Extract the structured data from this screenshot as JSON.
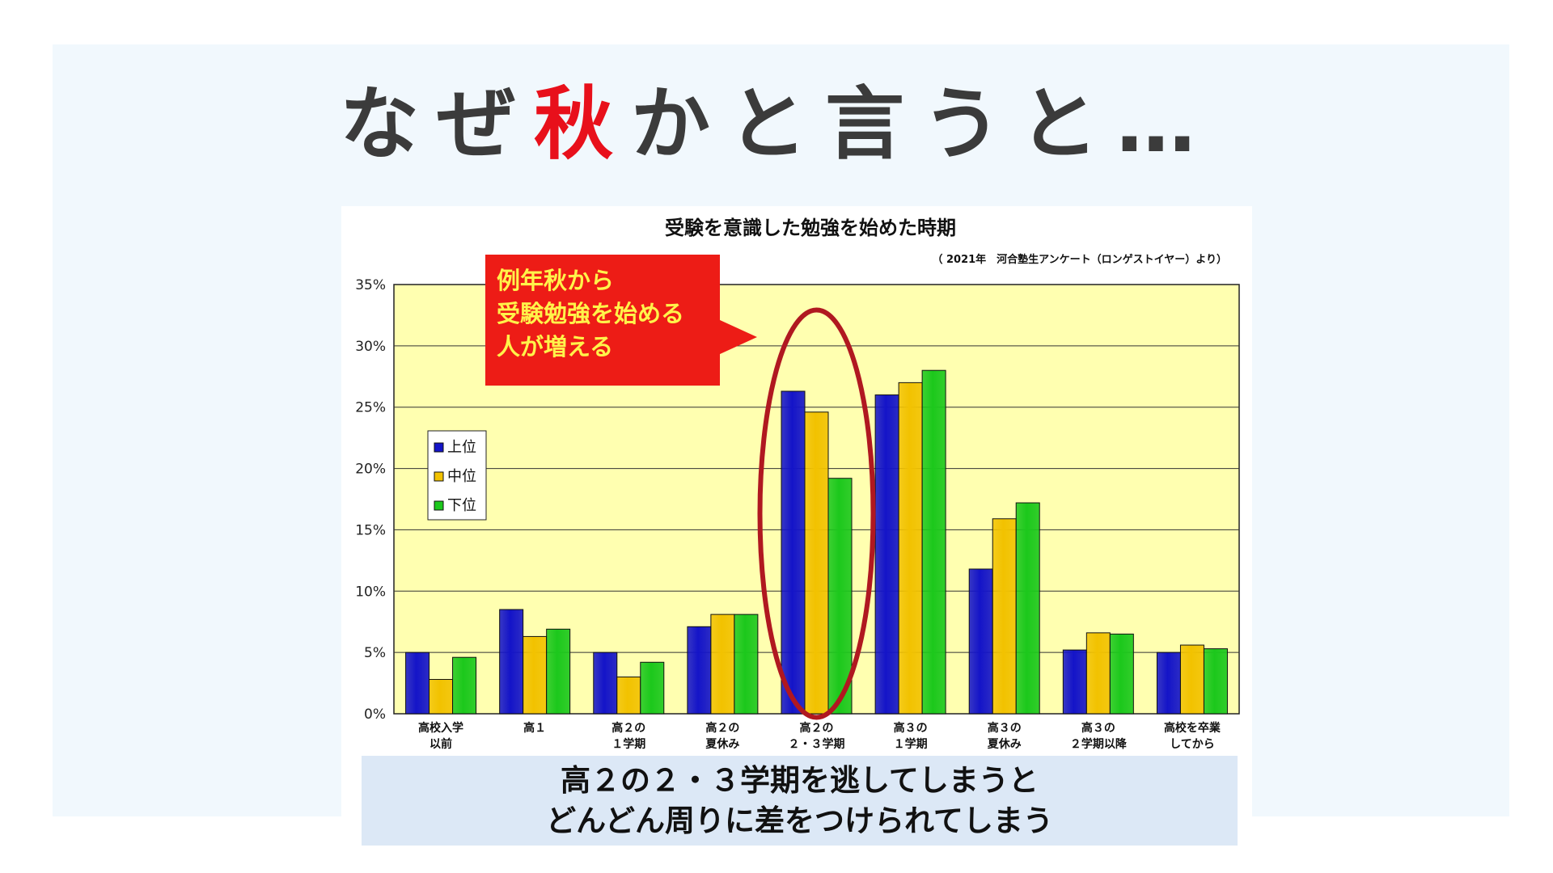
{
  "headline": {
    "before": "なぜ",
    "accent": "秋",
    "after": "かと言うと…"
  },
  "callout": {
    "lines": [
      "例年秋から",
      "受験勉強を始める",
      "人が増える"
    ]
  },
  "caption": {
    "line1": "高２の２・３学期を逃してしまうと",
    "line2": "どんどん周りに差をつけられてしまう"
  },
  "colors": {
    "upper": "#1414c8",
    "middle": "#f2c200",
    "lower": "#1cc81c",
    "plot_bg": "#ffffb0",
    "highlight": "#b01820",
    "callout": "#ed1c16"
  },
  "chart_data": {
    "type": "bar",
    "title": "受験を意識した勉強を始めた時期",
    "source": "（ 2021年　河合塾生アンケート（ロンゲストイヤー）より）",
    "categories": [
      [
        "高校入学",
        "以前"
      ],
      [
        "高１"
      ],
      [
        "高２の",
        "１学期"
      ],
      [
        "高２の",
        "夏休み"
      ],
      [
        "高２の",
        "２・３学期"
      ],
      [
        "高３の",
        "１学期"
      ],
      [
        "高３の",
        "夏休み"
      ],
      [
        "高３の",
        "２学期以降"
      ],
      [
        "高校を卒業",
        "してから"
      ]
    ],
    "series": [
      {
        "name": "上位",
        "values": [
          5.0,
          8.5,
          5.0,
          7.1,
          26.3,
          26.0,
          11.8,
          5.2,
          5.0
        ]
      },
      {
        "name": "中位",
        "values": [
          2.8,
          6.3,
          3.0,
          8.1,
          24.6,
          27.0,
          15.9,
          6.6,
          5.6
        ]
      },
      {
        "name": "下位",
        "values": [
          4.6,
          6.9,
          4.2,
          8.1,
          19.2,
          28.0,
          17.2,
          6.5,
          5.3
        ]
      }
    ],
    "ylim": [
      0,
      35
    ],
    "yticks": [
      "0%",
      "5%",
      "10%",
      "15%",
      "20%",
      "25%",
      "30%",
      "35%"
    ],
    "ytick_values": [
      0,
      5,
      10,
      15,
      20,
      25,
      30,
      35
    ],
    "legend": "left",
    "grid": true,
    "highlight_category": 4
  }
}
